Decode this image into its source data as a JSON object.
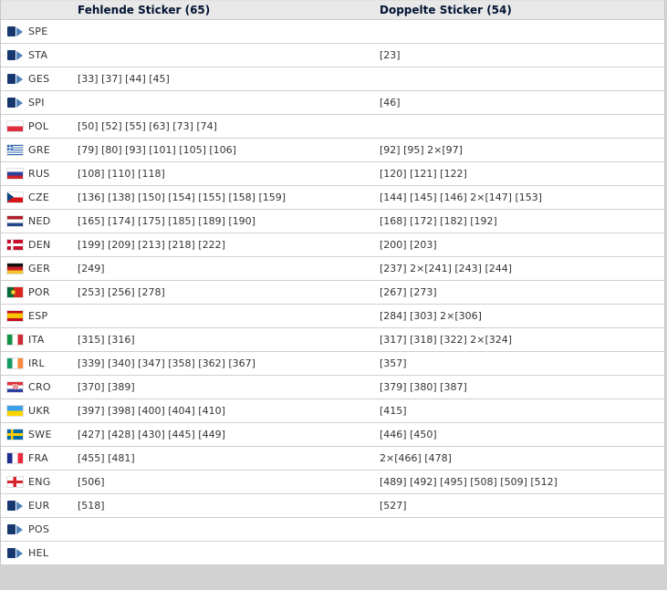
{
  "table": {
    "columns": {
      "missing": "Fehlende Sticker (65)",
      "double": "Doppelte Sticker (54)"
    },
    "rows": [
      {
        "code": "SPE",
        "flag": "logo",
        "missing": "",
        "double": ""
      },
      {
        "code": "STA",
        "flag": "logo",
        "missing": "",
        "double": "[23]"
      },
      {
        "code": "GES",
        "flag": "logo",
        "missing": "[33] [37] [44] [45]",
        "double": ""
      },
      {
        "code": "SPI",
        "flag": "logo",
        "missing": "",
        "double": "[46]"
      },
      {
        "code": "POL",
        "flag": "pol",
        "missing": "[50] [52] [55] [63] [73] [74]",
        "double": ""
      },
      {
        "code": "GRE",
        "flag": "gre",
        "missing": "[79] [80] [93] [101] [105] [106]",
        "double": "[92] [95] 2×[97]"
      },
      {
        "code": "RUS",
        "flag": "rus",
        "missing": "[108] [110] [118]",
        "double": "[120] [121] [122]"
      },
      {
        "code": "CZE",
        "flag": "cze",
        "missing": "[136] [138] [150] [154] [155] [158] [159]",
        "double": "[144] [145] [146] 2×[147] [153]"
      },
      {
        "code": "NED",
        "flag": "ned",
        "missing": "[165] [174] [175] [185] [189] [190]",
        "double": "[168] [172] [182] [192]"
      },
      {
        "code": "DEN",
        "flag": "den",
        "missing": "[199] [209] [213] [218] [222]",
        "double": "[200] [203]"
      },
      {
        "code": "GER",
        "flag": "ger",
        "missing": "[249]",
        "double": "[237] 2×[241] [243] [244]"
      },
      {
        "code": "POR",
        "flag": "por",
        "missing": "[253] [256] [278]",
        "double": "[267] [273]"
      },
      {
        "code": "ESP",
        "flag": "esp",
        "missing": "",
        "double": "[284] [303] 2×[306]"
      },
      {
        "code": "ITA",
        "flag": "ita",
        "missing": "[315] [316]",
        "double": "[317] [318] [322] 2×[324]"
      },
      {
        "code": "IRL",
        "flag": "irl",
        "missing": "[339] [340] [347] [358] [362] [367]",
        "double": "[357]"
      },
      {
        "code": "CRO",
        "flag": "cro",
        "missing": "[370] [389]",
        "double": "[379] [380] [387]"
      },
      {
        "code": "UKR",
        "flag": "ukr",
        "missing": "[397] [398] [400] [404] [410]",
        "double": "[415]"
      },
      {
        "code": "SWE",
        "flag": "swe",
        "missing": "[427] [428] [430] [445] [449]",
        "double": "[446] [450]"
      },
      {
        "code": "FRA",
        "flag": "fra",
        "missing": "[455] [481]",
        "double": "2×[466] [478]"
      },
      {
        "code": "ENG",
        "flag": "eng",
        "missing": "[506]",
        "double": "[489] [492] [495] [508] [509] [512]"
      },
      {
        "code": "EUR",
        "flag": "logo",
        "missing": "[518]",
        "double": "[527]"
      },
      {
        "code": "POS",
        "flag": "logo",
        "missing": "",
        "double": ""
      },
      {
        "code": "HEL",
        "flag": "logo",
        "missing": "",
        "double": ""
      }
    ]
  },
  "colors": {
    "header_bg": "#e8e8e8",
    "header_text": "#001331",
    "row_text": "#333333",
    "row_border": "#cfcfcf",
    "page_bg": "#d2d2d2",
    "logo_navy": "#17386e",
    "logo_blue": "#4d7fb8"
  }
}
